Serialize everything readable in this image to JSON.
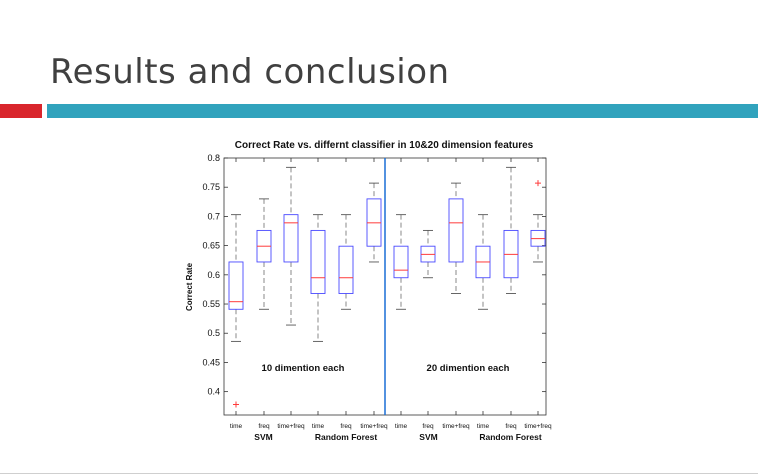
{
  "slide": {
    "title": "Results and conclusion"
  },
  "colors": {
    "accent_red": "#d9262c",
    "accent_teal": "#31a3bd",
    "box": "#4a4aff",
    "median": "#ff3b3b",
    "divider": "#1a6fd6"
  },
  "chart_data": {
    "type": "box",
    "title": "Correct Rate vs. differnt classifier in 10&20 dimension features",
    "ylabel": "Correct Rate",
    "xlabel": "",
    "ylim": [
      0.36,
      0.8
    ],
    "yticks": [
      "0.8",
      "0.75",
      "0.7",
      "0.65",
      "0.6",
      "0.55",
      "0.5",
      "0.45",
      "0.4"
    ],
    "categories": [
      "time",
      "freq",
      "time+freq",
      "time",
      "freq",
      "time+freq",
      "time",
      "freq",
      "time+freq",
      "time",
      "freq",
      "time+freq"
    ],
    "boxes": [
      {
        "min": 0.486,
        "q1": 0.541,
        "median": 0.554,
        "q3": 0.622,
        "max": 0.703,
        "outliers": [
          0.378
        ]
      },
      {
        "min": 0.541,
        "q1": 0.622,
        "median": 0.649,
        "q3": 0.676,
        "max": 0.73,
        "outliers": []
      },
      {
        "min": 0.514,
        "q1": 0.622,
        "median": 0.689,
        "q3": 0.703,
        "max": 0.784,
        "outliers": []
      },
      {
        "min": 0.486,
        "q1": 0.568,
        "median": 0.595,
        "q3": 0.676,
        "max": 0.703,
        "outliers": []
      },
      {
        "min": 0.541,
        "q1": 0.568,
        "median": 0.595,
        "q3": 0.649,
        "max": 0.703,
        "outliers": []
      },
      {
        "min": 0.622,
        "q1": 0.649,
        "median": 0.689,
        "q3": 0.73,
        "max": 0.757,
        "outliers": []
      },
      {
        "min": 0.541,
        "q1": 0.595,
        "median": 0.608,
        "q3": 0.649,
        "max": 0.703,
        "outliers": []
      },
      {
        "min": 0.595,
        "q1": 0.622,
        "median": 0.635,
        "q3": 0.649,
        "max": 0.676,
        "outliers": []
      },
      {
        "min": 0.568,
        "q1": 0.622,
        "median": 0.689,
        "q3": 0.73,
        "max": 0.757,
        "outliers": []
      },
      {
        "min": 0.541,
        "q1": 0.595,
        "median": 0.622,
        "q3": 0.649,
        "max": 0.703,
        "outliers": []
      },
      {
        "min": 0.568,
        "q1": 0.595,
        "median": 0.635,
        "q3": 0.676,
        "max": 0.784,
        "outliers": []
      },
      {
        "min": 0.622,
        "q1": 0.649,
        "median": 0.662,
        "q3": 0.676,
        "max": 0.703,
        "outliers": [
          0.757
        ]
      }
    ],
    "group_labels": [
      "SVM",
      "Random Forest",
      "SVM",
      "Random Forest"
    ],
    "annotations": [
      "10 dimention each",
      "20 dimention each"
    ],
    "grid": false
  }
}
